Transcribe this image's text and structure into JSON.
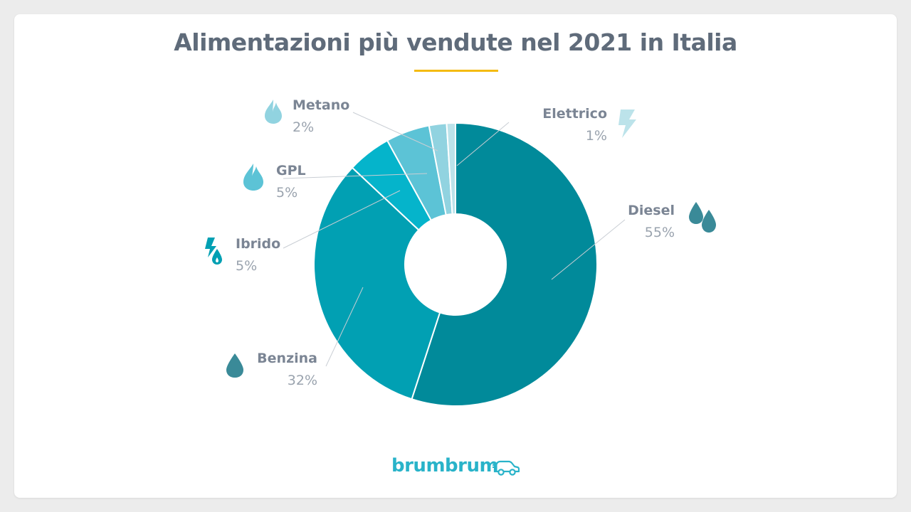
{
  "chart_data": {
    "type": "pie",
    "title": "Alimentazioni più vendute nel 2021 in Italia",
    "slices": [
      {
        "label": "Diesel",
        "percent_label": "55%",
        "value": 55,
        "color": "#018a9a",
        "icon": "double-drop-icon"
      },
      {
        "label": "Benzina",
        "percent_label": "32%",
        "value": 32,
        "color": "#01a0b3",
        "icon": "drop-icon"
      },
      {
        "label": "Ibrido",
        "percent_label": "5%",
        "value": 5,
        "color": "#05b4cb",
        "icon": "hybrid-bolt-drop-icon"
      },
      {
        "label": "GPL",
        "percent_label": "5%",
        "value": 5,
        "color": "#5cc3d6",
        "icon": "flame-icon"
      },
      {
        "label": "Metano",
        "percent_label": "2%",
        "value": 2,
        "color": "#91d3e0",
        "icon": "flame-icon"
      },
      {
        "label": "Elettrico",
        "percent_label": "1%",
        "value": 1,
        "color": "#bce3ea",
        "icon": "bolt-icon"
      }
    ]
  },
  "brand": {
    "name": "brumbrum",
    "logo_icon": "car-icon",
    "accent_color": "#29b3c9"
  },
  "underline_color": "#f4bb13"
}
